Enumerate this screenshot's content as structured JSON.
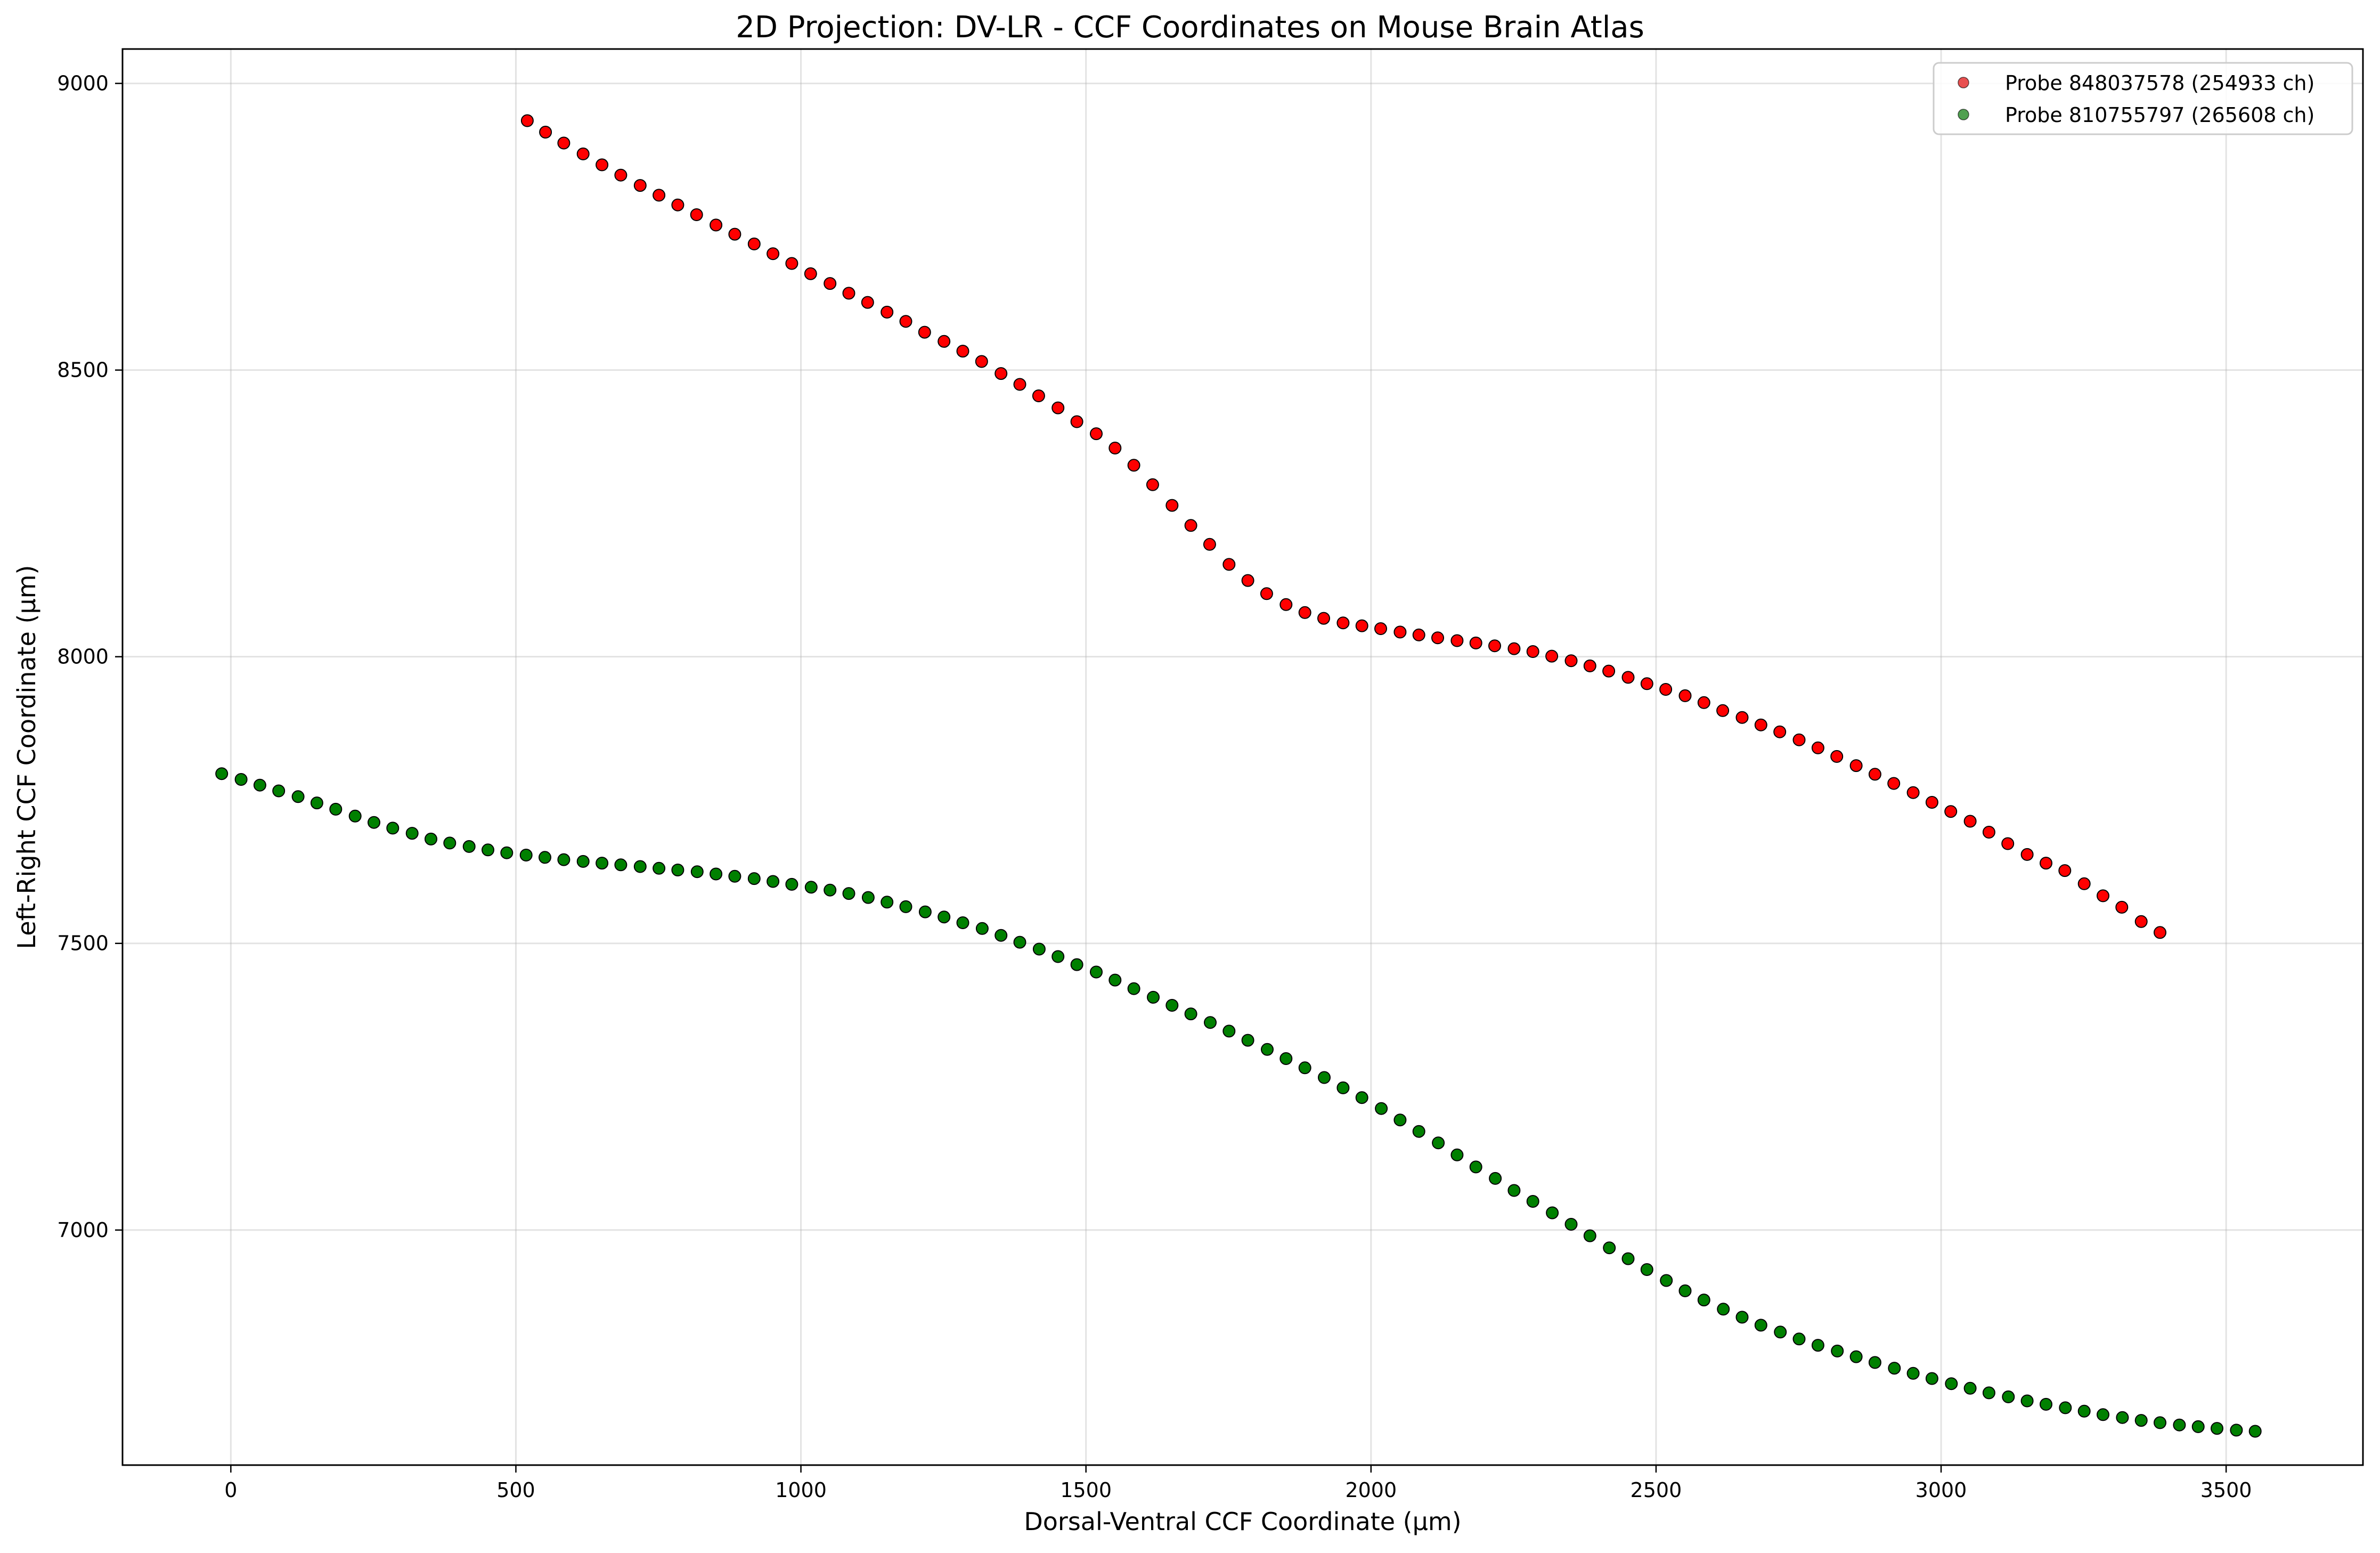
{
  "chart_data": {
    "type": "scatter",
    "title": "2D Projection: DV-LR - CCF Coordinates on Mouse Brain Atlas",
    "xlabel": "Dorsal-Ventral CCF Coordinate (μm)",
    "ylabel": "Left-Right CCF Coordinate (μm)",
    "xlim": [
      -190,
      3740
    ],
    "ylim": [
      6590,
      9060
    ],
    "xticks": [
      0,
      500,
      1000,
      1500,
      2000,
      2500,
      3000,
      3500
    ],
    "yticks": [
      7000,
      7500,
      8000,
      8500,
      9000
    ],
    "grid": true,
    "legend_position": "top-right",
    "series": [
      {
        "name": "Probe 848037578 (254933 ch)",
        "color": "#ff0000",
        "legend_color": "#e85050",
        "edge_color": "#000000",
        "points": [
          [
            520,
            8935
          ],
          [
            552,
            8915
          ],
          [
            584,
            8896
          ],
          [
            618,
            8877
          ],
          [
            651,
            8858
          ],
          [
            684,
            8840
          ],
          [
            718,
            8822
          ],
          [
            751,
            8805
          ],
          [
            784,
            8788
          ],
          [
            817,
            8771
          ],
          [
            851,
            8753
          ],
          [
            884,
            8737
          ],
          [
            918,
            8720
          ],
          [
            951,
            8703
          ],
          [
            984,
            8686
          ],
          [
            1017,
            8668
          ],
          [
            1051,
            8651
          ],
          [
            1084,
            8634
          ],
          [
            1117,
            8618
          ],
          [
            1151,
            8601
          ],
          [
            1184,
            8585
          ],
          [
            1217,
            8566
          ],
          [
            1251,
            8550
          ],
          [
            1284,
            8533
          ],
          [
            1317,
            8515
          ],
          [
            1351,
            8494
          ],
          [
            1384,
            8475
          ],
          [
            1417,
            8455
          ],
          [
            1451,
            8434
          ],
          [
            1484,
            8410
          ],
          [
            1518,
            8389
          ],
          [
            1551,
            8364
          ],
          [
            1584,
            8334
          ],
          [
            1617,
            8300
          ],
          [
            1651,
            8264
          ],
          [
            1684,
            8229
          ],
          [
            1717,
            8196
          ],
          [
            1751,
            8161
          ],
          [
            1784,
            8133
          ],
          [
            1817,
            8110
          ],
          [
            1851,
            8091
          ],
          [
            1884,
            8077
          ],
          [
            1917,
            8067
          ],
          [
            1951,
            8059
          ],
          [
            1984,
            8054
          ],
          [
            2017,
            8049
          ],
          [
            2051,
            8043
          ],
          [
            2084,
            8038
          ],
          [
            2117,
            8033
          ],
          [
            2151,
            8028
          ],
          [
            2184,
            8024
          ],
          [
            2217,
            8019
          ],
          [
            2251,
            8014
          ],
          [
            2284,
            8009
          ],
          [
            2317,
            8001
          ],
          [
            2351,
            7993
          ],
          [
            2384,
            7984
          ],
          [
            2417,
            7975
          ],
          [
            2451,
            7964
          ],
          [
            2484,
            7953
          ],
          [
            2517,
            7943
          ],
          [
            2551,
            7932
          ],
          [
            2584,
            7920
          ],
          [
            2617,
            7906
          ],
          [
            2651,
            7894
          ],
          [
            2684,
            7881
          ],
          [
            2717,
            7869
          ],
          [
            2751,
            7855
          ],
          [
            2784,
            7841
          ],
          [
            2817,
            7826
          ],
          [
            2851,
            7810
          ],
          [
            2884,
            7795
          ],
          [
            2917,
            7779
          ],
          [
            2951,
            7763
          ],
          [
            2984,
            7746
          ],
          [
            3017,
            7730
          ],
          [
            3051,
            7713
          ],
          [
            3084,
            7694
          ],
          [
            3117,
            7674
          ],
          [
            3151,
            7655
          ],
          [
            3184,
            7640
          ],
          [
            3217,
            7627
          ],
          [
            3251,
            7604
          ],
          [
            3284,
            7583
          ],
          [
            3317,
            7563
          ],
          [
            3351,
            7538
          ],
          [
            3384,
            7519
          ]
        ]
      },
      {
        "name": "Probe 810755797 (265608 ch)",
        "color": "#008000",
        "legend_color": "#50a050",
        "edge_color": "#000000",
        "points": [
          [
            -16,
            7796
          ],
          [
            18,
            7786
          ],
          [
            51,
            7776
          ],
          [
            84,
            7766
          ],
          [
            118,
            7756
          ],
          [
            151,
            7745
          ],
          [
            184,
            7734
          ],
          [
            218,
            7722
          ],
          [
            251,
            7711
          ],
          [
            284,
            7701
          ],
          [
            318,
            7692
          ],
          [
            351,
            7682
          ],
          [
            384,
            7675
          ],
          [
            418,
            7669
          ],
          [
            451,
            7663
          ],
          [
            484,
            7658
          ],
          [
            518,
            7654
          ],
          [
            551,
            7650
          ],
          [
            584,
            7646
          ],
          [
            618,
            7643
          ],
          [
            651,
            7640
          ],
          [
            684,
            7637
          ],
          [
            718,
            7634
          ],
          [
            751,
            7631
          ],
          [
            784,
            7628
          ],
          [
            818,
            7625
          ],
          [
            851,
            7621
          ],
          [
            884,
            7617
          ],
          [
            918,
            7613
          ],
          [
            951,
            7608
          ],
          [
            984,
            7603
          ],
          [
            1018,
            7598
          ],
          [
            1051,
            7593
          ],
          [
            1084,
            7587
          ],
          [
            1118,
            7580
          ],
          [
            1151,
            7572
          ],
          [
            1184,
            7564
          ],
          [
            1218,
            7555
          ],
          [
            1251,
            7546
          ],
          [
            1284,
            7536
          ],
          [
            1318,
            7526
          ],
          [
            1351,
            7514
          ],
          [
            1384,
            7502
          ],
          [
            1418,
            7490
          ],
          [
            1451,
            7477
          ],
          [
            1484,
            7463
          ],
          [
            1518,
            7450
          ],
          [
            1551,
            7436
          ],
          [
            1584,
            7421
          ],
          [
            1618,
            7406
          ],
          [
            1651,
            7392
          ],
          [
            1684,
            7377
          ],
          [
            1718,
            7362
          ],
          [
            1751,
            7347
          ],
          [
            1784,
            7331
          ],
          [
            1818,
            7315
          ],
          [
            1851,
            7299
          ],
          [
            1884,
            7283
          ],
          [
            1918,
            7266
          ],
          [
            1951,
            7248
          ],
          [
            1984,
            7231
          ],
          [
            2018,
            7212
          ],
          [
            2051,
            7192
          ],
          [
            2084,
            7172
          ],
          [
            2118,
            7152
          ],
          [
            2151,
            7131
          ],
          [
            2184,
            7110
          ],
          [
            2218,
            7090
          ],
          [
            2251,
            7069
          ],
          [
            2284,
            7050
          ],
          [
            2318,
            7030
          ],
          [
            2351,
            7010
          ],
          [
            2384,
            6990
          ],
          [
            2418,
            6969
          ],
          [
            2451,
            6950
          ],
          [
            2484,
            6931
          ],
          [
            2518,
            6912
          ],
          [
            2551,
            6894
          ],
          [
            2584,
            6878
          ],
          [
            2618,
            6862
          ],
          [
            2651,
            6848
          ],
          [
            2684,
            6834
          ],
          [
            2718,
            6822
          ],
          [
            2751,
            6810
          ],
          [
            2784,
            6799
          ],
          [
            2818,
            6789
          ],
          [
            2851,
            6779
          ],
          [
            2884,
            6769
          ],
          [
            2918,
            6759
          ],
          [
            2951,
            6750
          ],
          [
            2984,
            6741
          ],
          [
            3018,
            6732
          ],
          [
            3051,
            6724
          ],
          [
            3084,
            6716
          ],
          [
            3118,
            6709
          ],
          [
            3151,
            6702
          ],
          [
            3184,
            6696
          ],
          [
            3218,
            6690
          ],
          [
            3251,
            6684
          ],
          [
            3284,
            6678
          ],
          [
            3318,
            6673
          ],
          [
            3351,
            6668
          ],
          [
            3384,
            6664
          ],
          [
            3418,
            6660
          ],
          [
            3451,
            6657
          ],
          [
            3484,
            6654
          ],
          [
            3518,
            6651
          ],
          [
            3551,
            6649
          ]
        ]
      }
    ]
  }
}
